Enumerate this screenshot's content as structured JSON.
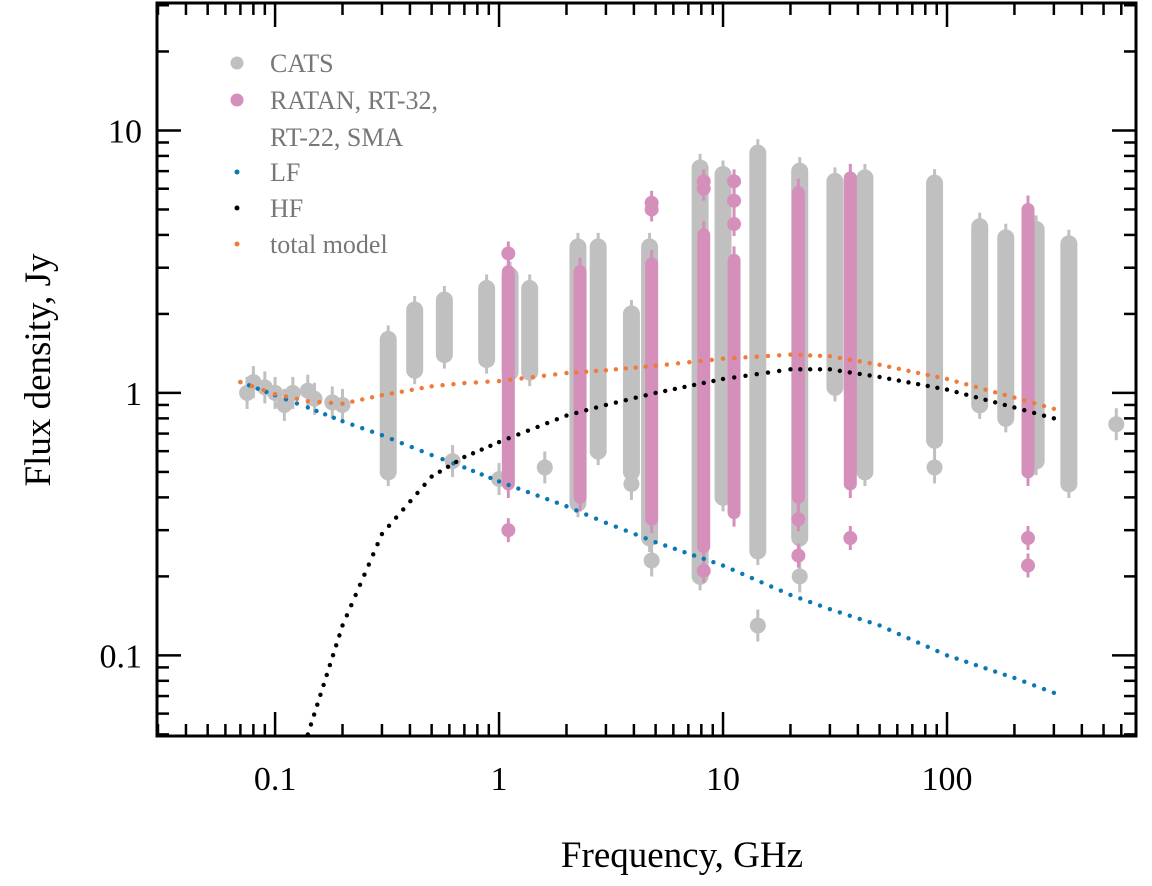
{
  "chart_data": {
    "type": "scatter",
    "title": "",
    "xlabel": "Frequency, GHz",
    "ylabel": "Flux density, Jy",
    "xscale": "log",
    "yscale": "log",
    "xlim": [
      0.0297,
      698
    ],
    "ylim": [
      0.0493,
      30.6
    ],
    "grid": false,
    "legend_position": "top-left",
    "x_ticks": [
      {
        "value": 0.1,
        "label": "0.1"
      },
      {
        "value": 1,
        "label": "1"
      },
      {
        "value": 10,
        "label": "10"
      },
      {
        "value": 100,
        "label": "100"
      }
    ],
    "y_ticks": [
      {
        "value": 0.1,
        "label": "0.1"
      },
      {
        "value": 1,
        "label": "1"
      },
      {
        "value": 10,
        "label": "10"
      }
    ],
    "colors": {
      "cats": "#c0c0c0",
      "ratan": "#d48fbb",
      "lf": "#0a78b4",
      "hf": "#000000",
      "total": "#f07a3a"
    },
    "legend": [
      {
        "key": "cats",
        "label": "CATS",
        "marker": "large-dot"
      },
      {
        "key": "ratan",
        "label": "RATAN, RT-32,",
        "label2": "RT-22, SMA",
        "marker": "large-dot"
      },
      {
        "key": "lf",
        "label": "LF",
        "marker": "small-dot"
      },
      {
        "key": "hf",
        "label": "HF",
        "marker": "small-dot"
      },
      {
        "key": "total",
        "label": "total model",
        "marker": "small-dot"
      }
    ],
    "cats_points": [
      [
        0.075,
        1.0
      ],
      [
        0.08,
        1.1
      ],
      [
        0.09,
        1.05
      ],
      [
        0.1,
        1.0
      ],
      [
        0.11,
        0.9
      ],
      [
        0.12,
        1.0
      ],
      [
        0.14,
        1.02
      ],
      [
        0.15,
        0.95
      ],
      [
        0.18,
        0.92
      ],
      [
        0.2,
        0.9
      ],
      [
        0.62,
        0.55
      ],
      [
        1.0,
        0.47
      ],
      [
        1.6,
        0.52
      ],
      [
        3.9,
        0.45
      ],
      [
        88,
        0.52
      ],
      [
        570,
        0.76
      ],
      [
        22,
        0.2
      ],
      [
        14.3,
        0.13
      ],
      [
        4.8,
        0.23
      ]
    ],
    "cats_columns": [
      {
        "freq": 0.32,
        "range": [
          0.5,
          1.6
        ]
      },
      {
        "freq": 0.42,
        "range": [
          1.22,
          2.07
        ]
      },
      {
        "freq": 0.57,
        "range": [
          1.4,
          2.26
        ]
      },
      {
        "freq": 0.88,
        "range": [
          1.34,
          2.5
        ]
      },
      {
        "freq": 1.12,
        "range": [
          1.2,
          2.8
        ]
      },
      {
        "freq": 1.37,
        "range": [
          1.2,
          2.5
        ]
      },
      {
        "freq": 2.25,
        "range": [
          0.38,
          3.6
        ]
      },
      {
        "freq": 2.77,
        "range": [
          0.6,
          3.6
        ]
      },
      {
        "freq": 3.9,
        "range": [
          0.5,
          2.0
        ]
      },
      {
        "freq": 4.7,
        "range": [
          0.28,
          3.6
        ]
      },
      {
        "freq": 7.9,
        "range": [
          0.2,
          7.2
        ]
      },
      {
        "freq": 10,
        "range": [
          0.4,
          6.8
        ]
      },
      {
        "freq": 14.3,
        "range": [
          0.25,
          8.2
        ]
      },
      {
        "freq": 22,
        "range": [
          0.28,
          7.0
        ]
      },
      {
        "freq": 31.6,
        "range": [
          1.05,
          6.4
        ]
      },
      {
        "freq": 43,
        "range": [
          0.5,
          6.6
        ]
      },
      {
        "freq": 88,
        "range": [
          0.66,
          6.3
        ]
      },
      {
        "freq": 140,
        "range": [
          0.9,
          4.3
        ]
      },
      {
        "freq": 183,
        "range": [
          0.8,
          3.9
        ]
      },
      {
        "freq": 250,
        "range": [
          0.55,
          4.2
        ]
      },
      {
        "freq": 350,
        "range": [
          0.45,
          3.7
        ]
      }
    ],
    "ratan_columns": [
      {
        "freq": 1.1,
        "range": [
          0.45,
          2.9
        ],
        "outliers": [
          3.4,
          0.3
        ]
      },
      {
        "freq": 2.3,
        "range": [
          0.4,
          2.9
        ],
        "outliers": []
      },
      {
        "freq": 4.8,
        "range": [
          0.33,
          3.1
        ],
        "outliers": [
          5.3,
          5.0
        ]
      },
      {
        "freq": 8.2,
        "range": [
          0.26,
          4.0
        ],
        "outliers": [
          6.4,
          6.0,
          0.21
        ]
      },
      {
        "freq": 11.2,
        "range": [
          0.35,
          3.2
        ],
        "outliers": [
          6.4,
          5.4,
          4.4
        ]
      },
      {
        "freq": 21.7,
        "range": [
          0.4,
          5.8
        ],
        "outliers": [
          0.33,
          0.24
        ]
      },
      {
        "freq": 37,
        "range": [
          0.45,
          6.6
        ],
        "outliers": [
          0.28
        ]
      },
      {
        "freq": 230,
        "range": [
          0.5,
          5.0
        ],
        "outliers": [
          0.28,
          0.22
        ]
      }
    ],
    "models": {
      "x": [
        0.07,
        0.1,
        0.14,
        0.2,
        0.3,
        0.5,
        0.7,
        1,
        2,
        3,
        5,
        10,
        20,
        30,
        50,
        100,
        200,
        300
      ],
      "lf": [
        1.1,
        0.98,
        0.88,
        0.78,
        0.69,
        0.58,
        0.52,
        0.46,
        0.37,
        0.32,
        0.27,
        0.22,
        0.17,
        0.15,
        0.13,
        0.1,
        0.082,
        0.072
      ],
      "hf": [
        null,
        null,
        0.05,
        0.13,
        0.29,
        0.48,
        0.57,
        0.65,
        0.82,
        0.9,
        1.0,
        1.13,
        1.23,
        1.23,
        1.15,
        1.03,
        0.88,
        0.8
      ],
      "total": [
        1.1,
        0.99,
        0.93,
        0.91,
        0.98,
        1.06,
        1.09,
        1.11,
        1.19,
        1.22,
        1.27,
        1.35,
        1.4,
        1.38,
        1.28,
        1.13,
        0.96,
        0.87
      ]
    }
  }
}
